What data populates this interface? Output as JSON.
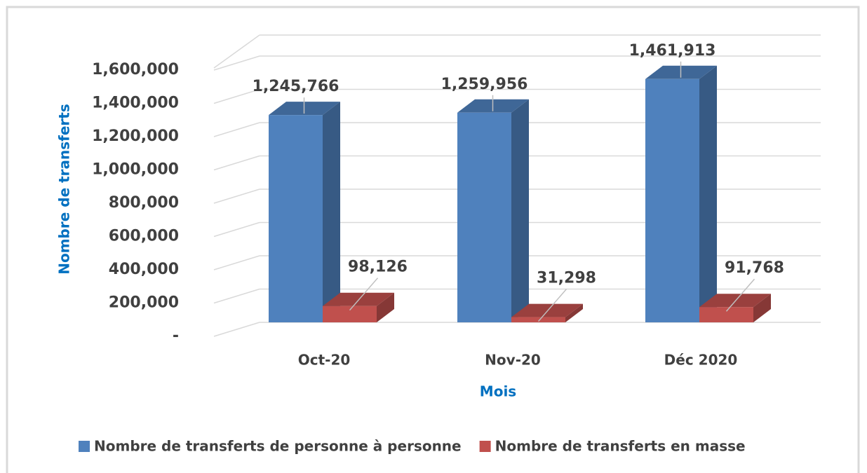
{
  "chart_data": {
    "type": "bar3d",
    "categories": [
      "Oct-20",
      "Nov-20",
      "Déc 2020"
    ],
    "series": [
      {
        "name": "Nombre de transferts de personne à personne",
        "color": "#4f81bd",
        "values": [
          1245766,
          1259956,
          1461913
        ],
        "value_labels": [
          "1,245,766",
          "1,259,956",
          "1,461,913"
        ]
      },
      {
        "name": "Nombre de transferts en masse",
        "color": "#c0504d",
        "values": [
          98126,
          31298,
          91768
        ],
        "value_labels": [
          "98,126",
          "31,298",
          "91,768"
        ]
      }
    ],
    "x_label": "Mois",
    "y_label": "Nombre de transferts",
    "ylim": [
      0,
      1600000
    ],
    "yticks": [
      {
        "value": 0,
        "label": "-"
      },
      {
        "value": 200000,
        "label": "200,000"
      },
      {
        "value": 400000,
        "label": "400,000"
      },
      {
        "value": 600000,
        "label": "600,000"
      },
      {
        "value": 800000,
        "label": "800,000"
      },
      {
        "value": 1000000,
        "label": "1,000,000"
      },
      {
        "value": 1200000,
        "label": "1,200,000"
      },
      {
        "value": 1400000,
        "label": "1,400,000"
      },
      {
        "value": 1600000,
        "label": "1,600,000"
      }
    ],
    "grid": true,
    "legend": "bottom"
  }
}
